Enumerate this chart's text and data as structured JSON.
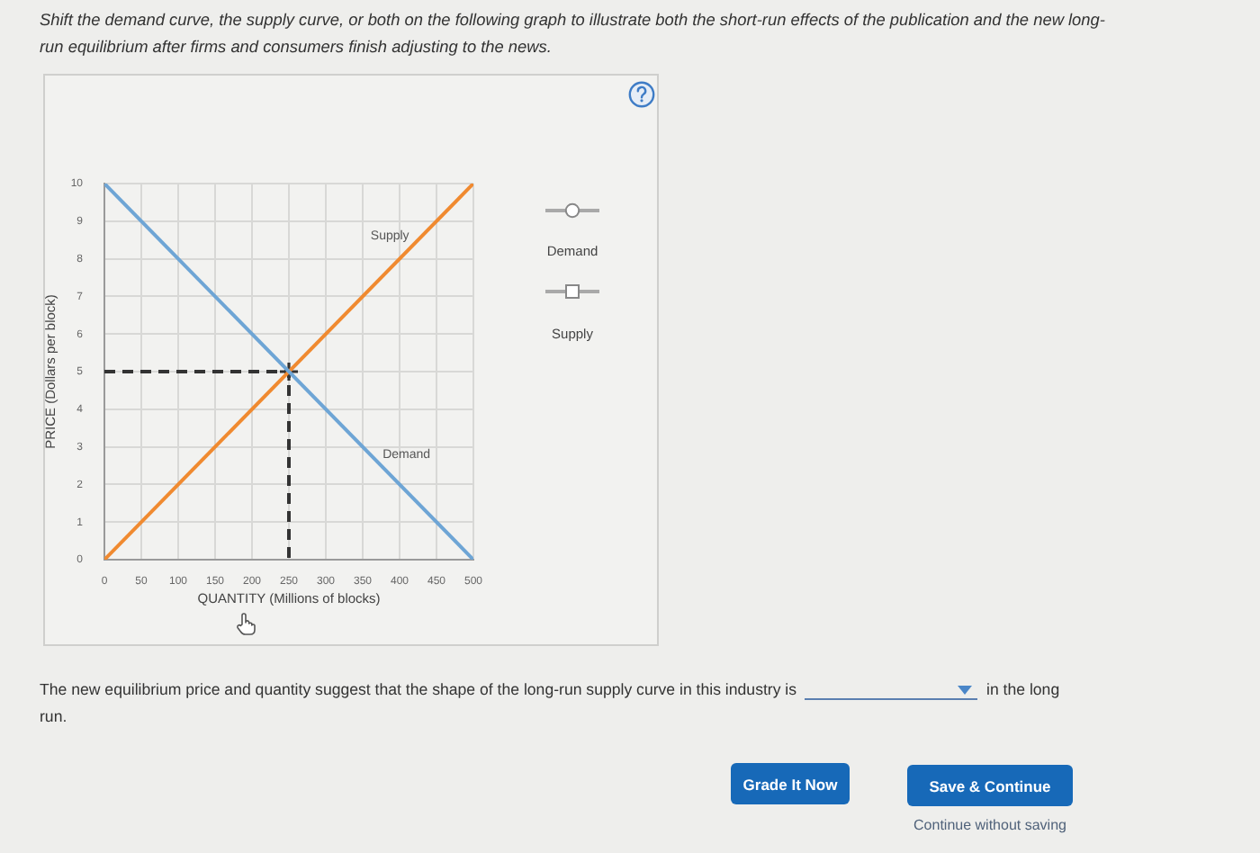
{
  "chart_data": {
    "type": "line",
    "title": "Shift the demand curve, the supply curve, or both on the following graph to illustrate both the short-run effects of the publication and the new long-run equilibrium after firms and consumers finish adjusting to the news.",
    "xlabel": "QUANTITY (Millions of blocks)",
    "ylabel": "PRICE (Dollars per block)",
    "xlim": [
      0,
      500
    ],
    "xticks": [
      0,
      50,
      100,
      150,
      200,
      250,
      300,
      350,
      400,
      450,
      500
    ],
    "ylim": [
      0,
      10
    ],
    "yticks": [
      0,
      1,
      2,
      3,
      4,
      5,
      6,
      7,
      8,
      9,
      10
    ],
    "grid": true,
    "series": [
      {
        "name": "Demand",
        "type": "line",
        "color": "#6ea5d5",
        "x": [
          0,
          500
        ],
        "values": [
          10,
          0
        ]
      },
      {
        "name": "Supply",
        "type": "line",
        "color": "#f08a30",
        "x": [
          0,
          500
        ],
        "values": [
          0,
          10
        ]
      },
      {
        "type": "line",
        "color": "#333333",
        "line_style": "dashed",
        "x": [
          0,
          250,
          250
        ],
        "values": [
          5,
          5,
          0
        ]
      },
      {
        "type": "scatter",
        "color": "#333333",
        "marker": "cross",
        "x": [
          250
        ],
        "values": [
          5
        ]
      }
    ],
    "annotations": [
      "Demand",
      "Supply",
      "The new equilibrium price and quantity suggest that the shape of the long-run supply curve in this industry is",
      "in the long",
      "run.",
      "Grade It Now",
      "Save & Continue",
      "Continue without saving"
    ]
  }
}
